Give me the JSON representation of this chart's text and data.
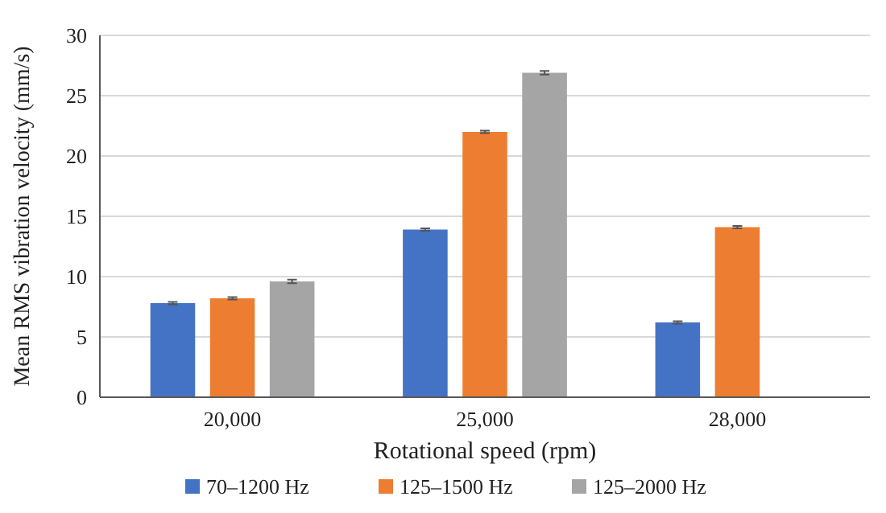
{
  "chart_data": {
    "type": "bar",
    "xlabel": "Rotational speed (rpm)",
    "ylabel": "Mean RMS vibration velocity (mm/s)",
    "categories": [
      "20,000",
      "25,000",
      "28,000"
    ],
    "ylim": [
      0,
      30
    ],
    "yticks": [
      0,
      5,
      10,
      15,
      20,
      25,
      30
    ],
    "grid": "y",
    "legend": "bottom",
    "series": [
      {
        "name": "70–1200 Hz",
        "color": "#4472c4",
        "values": [
          7.8,
          13.9,
          6.2
        ],
        "errors": [
          0.1,
          0.1,
          0.1
        ]
      },
      {
        "name": "125–1500 Hz",
        "color": "#ed7d31",
        "values": [
          8.2,
          22.0,
          14.1
        ],
        "errors": [
          0.1,
          0.1,
          0.1
        ]
      },
      {
        "name": "125–2000 Hz",
        "color": "#a5a5a5",
        "values": [
          9.6,
          26.9,
          null
        ],
        "errors": [
          0.15,
          0.15,
          null
        ]
      }
    ]
  }
}
